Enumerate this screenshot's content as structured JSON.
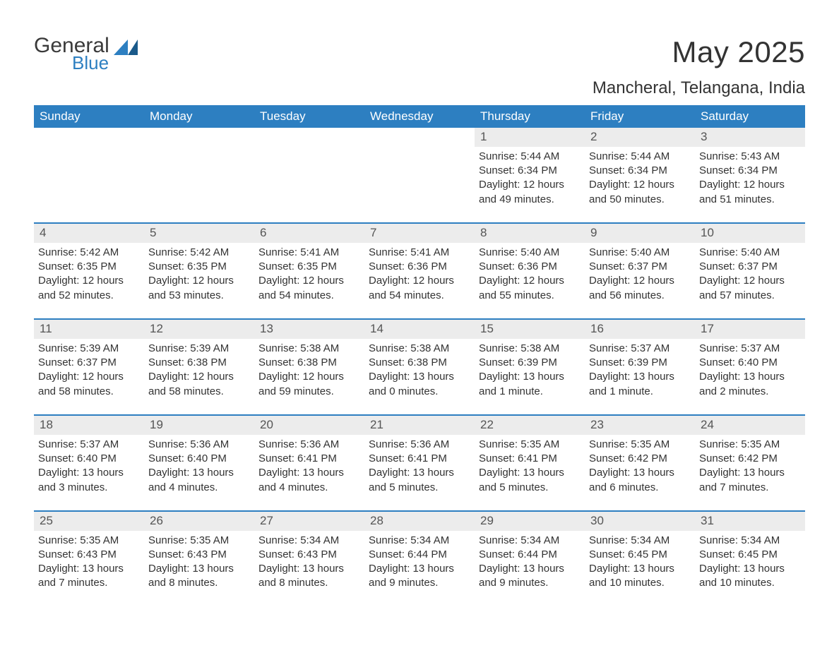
{
  "brand": {
    "word1": "General",
    "word2": "Blue"
  },
  "title": "May 2025",
  "location": "Mancheral, Telangana, India",
  "colors": {
    "header_bg": "#2d7fc1",
    "header_text": "#ffffff",
    "daynum_bg": "#ececec",
    "border_accent": "#2d7fc1",
    "body_text": "#333333",
    "page_bg": "#ffffff",
    "logo_gray": "#3a3a3a",
    "logo_blue": "#2d7fc1"
  },
  "weekdays": [
    "Sunday",
    "Monday",
    "Tuesday",
    "Wednesday",
    "Thursday",
    "Friday",
    "Saturday"
  ],
  "weeks": [
    [
      null,
      null,
      null,
      null,
      {
        "n": "1",
        "sr": "5:44 AM",
        "ss": "6:34 PM",
        "dl": "12 hours and 49 minutes."
      },
      {
        "n": "2",
        "sr": "5:44 AM",
        "ss": "6:34 PM",
        "dl": "12 hours and 50 minutes."
      },
      {
        "n": "3",
        "sr": "5:43 AM",
        "ss": "6:34 PM",
        "dl": "12 hours and 51 minutes."
      }
    ],
    [
      {
        "n": "4",
        "sr": "5:42 AM",
        "ss": "6:35 PM",
        "dl": "12 hours and 52 minutes."
      },
      {
        "n": "5",
        "sr": "5:42 AM",
        "ss": "6:35 PM",
        "dl": "12 hours and 53 minutes."
      },
      {
        "n": "6",
        "sr": "5:41 AM",
        "ss": "6:35 PM",
        "dl": "12 hours and 54 minutes."
      },
      {
        "n": "7",
        "sr": "5:41 AM",
        "ss": "6:36 PM",
        "dl": "12 hours and 54 minutes."
      },
      {
        "n": "8",
        "sr": "5:40 AM",
        "ss": "6:36 PM",
        "dl": "12 hours and 55 minutes."
      },
      {
        "n": "9",
        "sr": "5:40 AM",
        "ss": "6:37 PM",
        "dl": "12 hours and 56 minutes."
      },
      {
        "n": "10",
        "sr": "5:40 AM",
        "ss": "6:37 PM",
        "dl": "12 hours and 57 minutes."
      }
    ],
    [
      {
        "n": "11",
        "sr": "5:39 AM",
        "ss": "6:37 PM",
        "dl": "12 hours and 58 minutes."
      },
      {
        "n": "12",
        "sr": "5:39 AM",
        "ss": "6:38 PM",
        "dl": "12 hours and 58 minutes."
      },
      {
        "n": "13",
        "sr": "5:38 AM",
        "ss": "6:38 PM",
        "dl": "12 hours and 59 minutes."
      },
      {
        "n": "14",
        "sr": "5:38 AM",
        "ss": "6:38 PM",
        "dl": "13 hours and 0 minutes."
      },
      {
        "n": "15",
        "sr": "5:38 AM",
        "ss": "6:39 PM",
        "dl": "13 hours and 1 minute."
      },
      {
        "n": "16",
        "sr": "5:37 AM",
        "ss": "6:39 PM",
        "dl": "13 hours and 1 minute."
      },
      {
        "n": "17",
        "sr": "5:37 AM",
        "ss": "6:40 PM",
        "dl": "13 hours and 2 minutes."
      }
    ],
    [
      {
        "n": "18",
        "sr": "5:37 AM",
        "ss": "6:40 PM",
        "dl": "13 hours and 3 minutes."
      },
      {
        "n": "19",
        "sr": "5:36 AM",
        "ss": "6:40 PM",
        "dl": "13 hours and 4 minutes."
      },
      {
        "n": "20",
        "sr": "5:36 AM",
        "ss": "6:41 PM",
        "dl": "13 hours and 4 minutes."
      },
      {
        "n": "21",
        "sr": "5:36 AM",
        "ss": "6:41 PM",
        "dl": "13 hours and 5 minutes."
      },
      {
        "n": "22",
        "sr": "5:35 AM",
        "ss": "6:41 PM",
        "dl": "13 hours and 5 minutes."
      },
      {
        "n": "23",
        "sr": "5:35 AM",
        "ss": "6:42 PM",
        "dl": "13 hours and 6 minutes."
      },
      {
        "n": "24",
        "sr": "5:35 AM",
        "ss": "6:42 PM",
        "dl": "13 hours and 7 minutes."
      }
    ],
    [
      {
        "n": "25",
        "sr": "5:35 AM",
        "ss": "6:43 PM",
        "dl": "13 hours and 7 minutes."
      },
      {
        "n": "26",
        "sr": "5:35 AM",
        "ss": "6:43 PM",
        "dl": "13 hours and 8 minutes."
      },
      {
        "n": "27",
        "sr": "5:34 AM",
        "ss": "6:43 PM",
        "dl": "13 hours and 8 minutes."
      },
      {
        "n": "28",
        "sr": "5:34 AM",
        "ss": "6:44 PM",
        "dl": "13 hours and 9 minutes."
      },
      {
        "n": "29",
        "sr": "5:34 AM",
        "ss": "6:44 PM",
        "dl": "13 hours and 9 minutes."
      },
      {
        "n": "30",
        "sr": "5:34 AM",
        "ss": "6:45 PM",
        "dl": "13 hours and 10 minutes."
      },
      {
        "n": "31",
        "sr": "5:34 AM",
        "ss": "6:45 PM",
        "dl": "13 hours and 10 minutes."
      }
    ]
  ],
  "labels": {
    "sunrise": "Sunrise: ",
    "sunset": "Sunset: ",
    "daylight": "Daylight: "
  }
}
